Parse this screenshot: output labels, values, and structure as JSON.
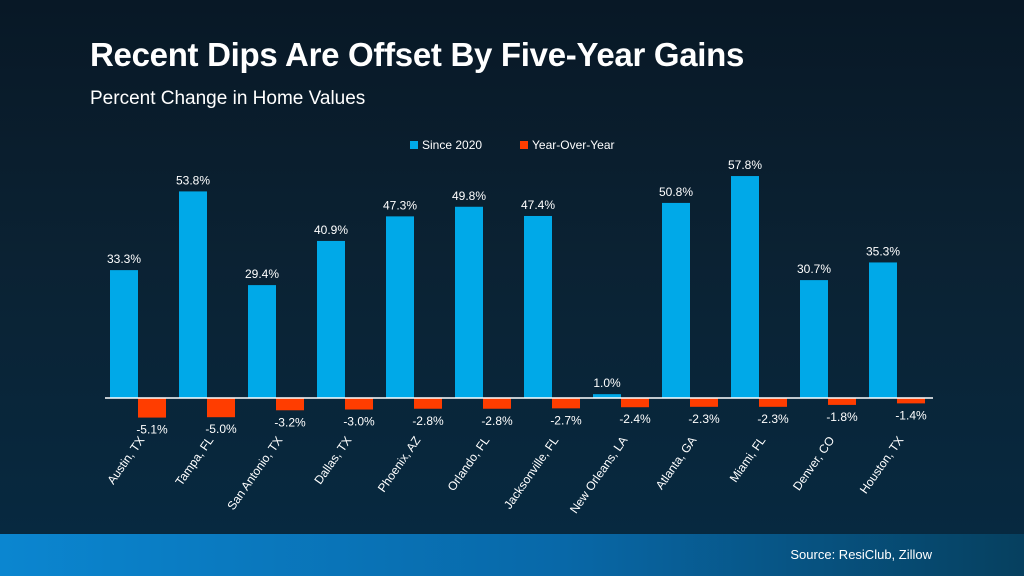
{
  "chart_data": {
    "type": "bar",
    "title": "Recent Dips Are Offset By Five-Year Gains",
    "subtitle": "Percent Change in Home Values",
    "categories": [
      "Austin, TX",
      "Tampa, FL",
      "San Antonio, TX",
      "Dallas, TX",
      "Phoenix, AZ",
      "Orlando, FL",
      "Jacksonville, FL",
      "New Orleans, LA",
      "Atlanta, GA",
      "Miami, FL",
      "Denver, CO",
      "Houston, TX"
    ],
    "series": [
      {
        "name": "Since 2020",
        "color": "#00a9e8",
        "values": [
          33.3,
          53.8,
          29.4,
          40.9,
          47.3,
          49.8,
          47.4,
          1.0,
          50.8,
          57.8,
          30.7,
          35.3
        ]
      },
      {
        "name": "Year-Over-Year",
        "color": "#ff3d00",
        "values": [
          -5.1,
          -5.0,
          -3.2,
          -3.0,
          -2.8,
          -2.8,
          -2.7,
          -2.4,
          -2.3,
          -2.3,
          -1.8,
          -1.4
        ]
      }
    ],
    "value_suffix": "%",
    "legend": "top-center",
    "grid": false,
    "source": "Source: ResiClub, Zillow"
  }
}
